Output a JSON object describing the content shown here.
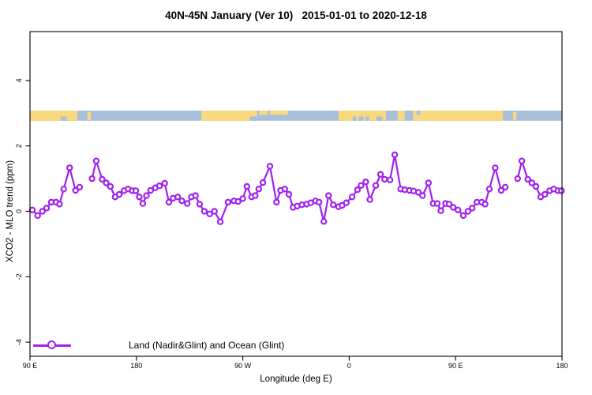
{
  "title": "40N-45N January (Ver 10)   2015-01-01 to 2020-12-18",
  "colors": {
    "series": "#A020F0",
    "land": "#FAD87E",
    "ocean": "#A8C0DC",
    "axis": "#000000",
    "marker_fill": "#ffffff"
  },
  "axes": {
    "x": {
      "label": "Longitude (deg E)",
      "ticks": [
        {
          "lon": 90,
          "label": "90 E"
        },
        {
          "lon": 180,
          "label": "180"
        },
        {
          "lon": 270,
          "label": "90 W"
        },
        {
          "lon": 360,
          "label": "0"
        },
        {
          "lon": 450,
          "label": "90 E"
        },
        {
          "lon": 540,
          "label": "180"
        }
      ]
    },
    "y": {
      "label": "XCO2 - MLO trend (ppm)",
      "ticks": [
        {
          "value": 4,
          "label": "4"
        },
        {
          "value": 2,
          "label": "2"
        },
        {
          "value": 0,
          "label": "0"
        },
        {
          "value": -2,
          "label": "-2"
        },
        {
          "value": -4,
          "label": "-4"
        }
      ]
    }
  },
  "legend": {
    "symbol": "open-circle-on-line",
    "label": "Land (Nadir&Glint) and Ocean (Glint)"
  },
  "chart_data": {
    "type": "line",
    "title": "40N-45N January (Ver 10)  2015-01-01 to 2020-12-18",
    "xlabel": "Longitude (deg E)",
    "ylabel": "XCO2 - MLO trend (ppm)",
    "xlim": [
      90,
      540
    ],
    "ylim": [
      -4,
      4
    ],
    "x_note": "longitude axis unwrapped: 90E to 180, 90W, 0, 90E, 180 (450 deg span, data repeats after 360)",
    "marker": "open-circle",
    "grid": false,
    "legend_position": "bottom-left-inside",
    "series": [
      {
        "name": "Land (Nadir&Glint) and Ocean (Glint)",
        "segments": [
          [
            [
              92,
              0.04
            ],
            [
              96.5,
              -0.13
            ],
            [
              100.5,
              0.0
            ],
            [
              104,
              0.1
            ],
            [
              108,
              0.28
            ],
            [
              112,
              0.28
            ],
            [
              115,
              0.22
            ],
            [
              118.5,
              0.68
            ],
            [
              123.5,
              1.33
            ],
            [
              128.5,
              0.64
            ],
            [
              132,
              0.74
            ]
          ],
          [
            [
              142.5,
              1.0
            ],
            [
              146,
              1.54
            ],
            [
              151,
              0.98
            ],
            [
              154.5,
              0.87
            ],
            [
              158,
              0.76
            ],
            [
              162,
              0.44
            ],
            [
              165.5,
              0.52
            ],
            [
              169.5,
              0.63
            ],
            [
              173,
              0.68
            ],
            [
              176.5,
              0.63
            ],
            [
              179.5,
              0.63
            ],
            [
              182.5,
              0.44
            ],
            [
              185.5,
              0.24
            ],
            [
              188.5,
              0.48
            ],
            [
              192,
              0.64
            ],
            [
              196,
              0.72
            ],
            [
              199.5,
              0.78
            ],
            [
              204,
              0.86
            ],
            [
              207.5,
              0.28
            ],
            [
              211,
              0.4
            ],
            [
              215,
              0.44
            ],
            [
              218.5,
              0.32
            ],
            [
              223,
              0.24
            ],
            [
              226.5,
              0.44
            ],
            [
              230,
              0.48
            ],
            [
              233.5,
              0.22
            ],
            [
              237.5,
              0.0
            ],
            [
              242,
              -0.08
            ],
            [
              246,
              0.0
            ],
            [
              251,
              -0.32
            ],
            [
              257.5,
              0.28
            ],
            [
              262.5,
              0.32
            ],
            [
              266,
              0.3
            ],
            [
              270,
              0.39
            ],
            [
              273.5,
              0.76
            ],
            [
              277.5,
              0.44
            ],
            [
              280.5,
              0.48
            ],
            [
              283.5,
              0.68
            ],
            [
              287,
              0.88
            ],
            [
              293,
              1.38
            ],
            [
              298.5,
              0.28
            ],
            [
              302,
              0.64
            ],
            [
              305.5,
              0.68
            ],
            [
              309,
              0.52
            ],
            [
              312.5,
              0.12
            ],
            [
              316,
              0.16
            ],
            [
              320,
              0.2
            ],
            [
              324,
              0.22
            ],
            [
              327.5,
              0.26
            ],
            [
              331.5,
              0.32
            ],
            [
              334.5,
              0.28
            ],
            [
              338.5,
              -0.31
            ],
            [
              342.5,
              0.48
            ],
            [
              346.5,
              0.2
            ],
            [
              351,
              0.14
            ],
            [
              354,
              0.18
            ],
            [
              357.5,
              0.26
            ],
            [
              362.5,
              0.44
            ],
            [
              367,
              0.66
            ],
            [
              370,
              0.79
            ],
            [
              374,
              0.9
            ],
            [
              377.5,
              0.36
            ],
            [
              382.5,
              0.79
            ],
            [
              386.5,
              1.13
            ],
            [
              390,
              0.98
            ],
            [
              394.5,
              0.96
            ],
            [
              398.5,
              1.73
            ],
            [
              403.5,
              0.68
            ],
            [
              407,
              0.66
            ],
            [
              411,
              0.64
            ],
            [
              414.5,
              0.62
            ],
            [
              418.5,
              0.58
            ],
            [
              422,
              0.48
            ],
            [
              427,
              0.87
            ],
            [
              431,
              0.24
            ],
            [
              434.5,
              0.24
            ],
            [
              437.5,
              0.02
            ],
            [
              441.5,
              0.24
            ],
            [
              444.5,
              0.22
            ],
            [
              448,
              0.12
            ],
            [
              452,
              0.04
            ],
            [
              456.5,
              -0.13
            ],
            [
              460.5,
              0.0
            ],
            [
              464,
              0.1
            ],
            [
              468,
              0.28
            ],
            [
              472,
              0.28
            ],
            [
              475,
              0.22
            ],
            [
              478.5,
              0.68
            ],
            [
              483.5,
              1.33
            ],
            [
              488.5,
              0.64
            ],
            [
              492,
              0.74
            ]
          ],
          [
            [
              502.5,
              1.0
            ],
            [
              506,
              1.54
            ],
            [
              511,
              0.98
            ],
            [
              514.5,
              0.87
            ],
            [
              518,
              0.76
            ],
            [
              522,
              0.44
            ],
            [
              525.5,
              0.52
            ],
            [
              529.5,
              0.63
            ],
            [
              533,
              0.68
            ],
            [
              536.5,
              0.63
            ],
            [
              539.5,
              0.63
            ]
          ]
        ]
      }
    ],
    "map_strip": {
      "description": "land/ocean strip for latitude band 40N-45N drawn across plot near +3 ppm",
      "value_top": 3.08,
      "value_bottom": 2.77,
      "ocean_extent": [
        90,
        540
      ],
      "land_segments": [
        [
          90,
          130
        ],
        [
          235,
          282
        ],
        [
          351,
          391
        ],
        [
          401,
          407
        ],
        [
          414,
          490
        ]
      ],
      "island_segments": [
        [
          138.5,
          141.5
        ],
        [
          498.5,
          501.5
        ]
      ],
      "coast_top_land": [
        [
          284,
          291
        ],
        [
          293,
          308
        ]
      ],
      "ocean_inlets_bottom": [
        [
          116,
          121
        ],
        [
          276,
          282
        ],
        [
          363,
          366
        ],
        [
          368,
          372
        ],
        [
          374,
          377
        ],
        [
          383,
          388
        ]
      ],
      "ocean_inlets_top": [
        [
          417,
          420
        ]
      ]
    }
  }
}
